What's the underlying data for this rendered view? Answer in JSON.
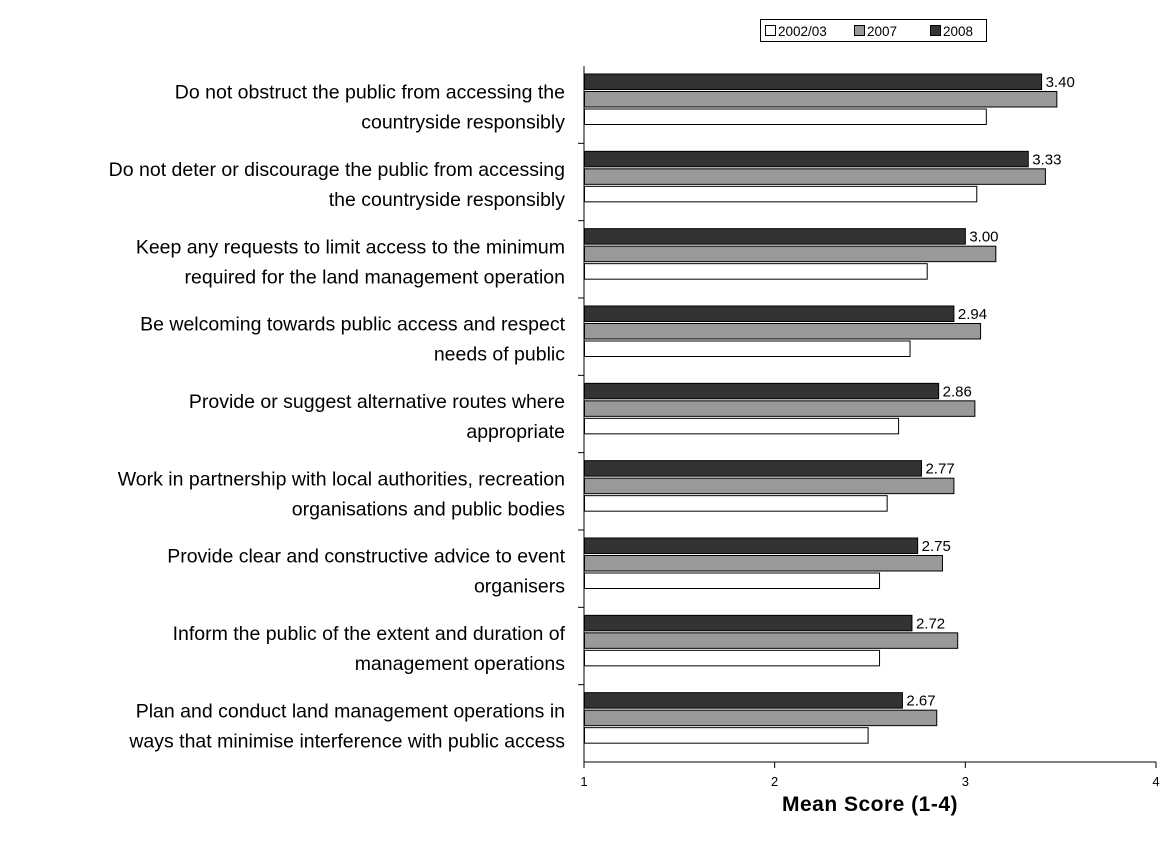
{
  "chart_data": {
    "type": "bar",
    "orientation": "horizontal",
    "xlabel": "Mean Score (1-4)",
    "xlim": [
      1,
      4
    ],
    "xticks": [
      "1",
      "2",
      "3",
      "4"
    ],
    "legend_position": "top-right",
    "grid": false,
    "categories": [
      [
        "Do not obstruct the public from accessing the",
        "countryside responsibly"
      ],
      [
        "Do not deter or discourage the public from accessing",
        "the countryside responsibly"
      ],
      [
        "Keep any requests to limit access to the minimum",
        "required for the land management operation"
      ],
      [
        "Be welcoming towards public access and respect",
        "needs of public"
      ],
      [
        "Provide or suggest alternative routes where",
        "appropriate"
      ],
      [
        "Work in partnership with local authorities, recreation",
        "organisations and public bodies"
      ],
      [
        "Provide clear and constructive advice to event",
        "organisers"
      ],
      [
        "Inform the public of the extent and duration of",
        "management operations"
      ],
      [
        "Plan and conduct land management operations in",
        "ways that minimise interference with public access"
      ]
    ],
    "series": [
      {
        "name": "2008",
        "color": "#333333",
        "values": [
          3.4,
          3.33,
          3.0,
          2.94,
          2.86,
          2.77,
          2.75,
          2.72,
          2.67
        ],
        "labels": [
          "3.40",
          "3.33",
          "3.00",
          "2.94",
          "2.86",
          "2.77",
          "2.75",
          "2.72",
          "2.67"
        ]
      },
      {
        "name": "2007",
        "color": "#999999",
        "values": [
          3.48,
          3.42,
          3.16,
          3.08,
          3.05,
          2.94,
          2.88,
          2.96,
          2.85
        ]
      },
      {
        "name": "2002/03",
        "color": "#ffffff",
        "values": [
          3.11,
          3.06,
          2.8,
          2.71,
          2.65,
          2.59,
          2.55,
          2.55,
          2.49
        ]
      }
    ],
    "legend_order": [
      "2002/03",
      "2007",
      "2008"
    ]
  }
}
